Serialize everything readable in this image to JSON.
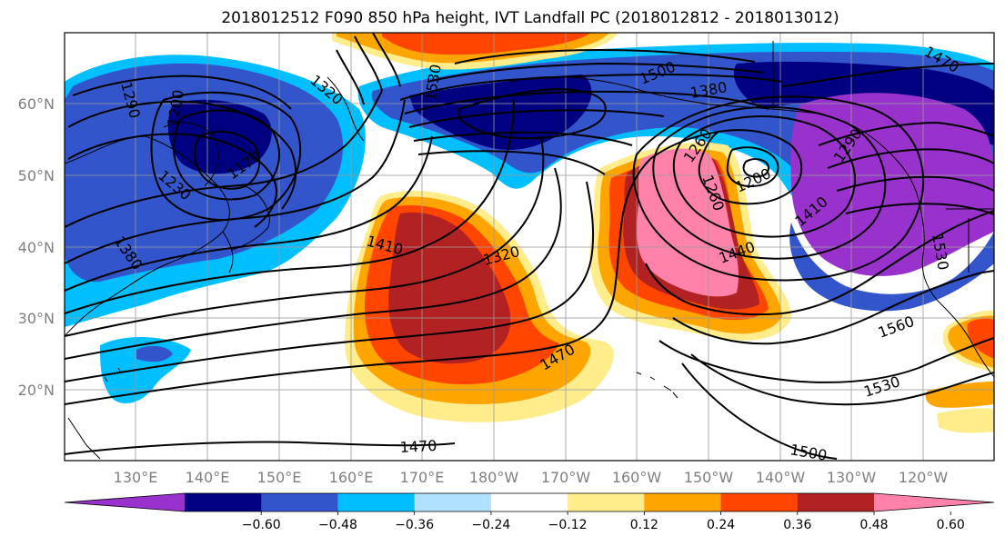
{
  "title": "2018012512 F090 850 hPa height, IVT Landfall PC (2018012812 - 2018013012)",
  "map": {
    "lon_labels": [
      "130°E",
      "140°E",
      "150°E",
      "160°E",
      "170°E",
      "180°W",
      "170°W",
      "160°W",
      "150°W",
      "140°W",
      "130°W",
      "120°W"
    ],
    "lat_labels": [
      "60°N",
      "50°N",
      "40°N",
      "30°N",
      "20°N"
    ],
    "contour_labels": [
      "1320",
      "1530",
      "1500",
      "1380",
      "1470",
      "1290",
      "1200",
      "1170",
      "1230",
      "1380",
      "1410",
      "1320",
      "1260",
      "1200",
      "1260",
      "1290",
      "1440",
      "1410",
      "1530",
      "1560",
      "1470",
      "1530",
      "1470",
      "1500"
    ],
    "gridlines": true
  },
  "colorbar": {
    "tick_labels": [
      "−0.60",
      "−0.48",
      "−0.36",
      "−0.24",
      "−0.12",
      "0.12",
      "0.24",
      "0.36",
      "0.48",
      "0.60"
    ],
    "colors": [
      "#9932CC",
      "#000080",
      "#3355CC",
      "#00BFFF",
      "#B0E2FF",
      "#FFFFFF",
      "#FFEC8B",
      "#FFA500",
      "#FF4500",
      "#B22222",
      "#FF82AB"
    ],
    "extend": "both"
  }
}
